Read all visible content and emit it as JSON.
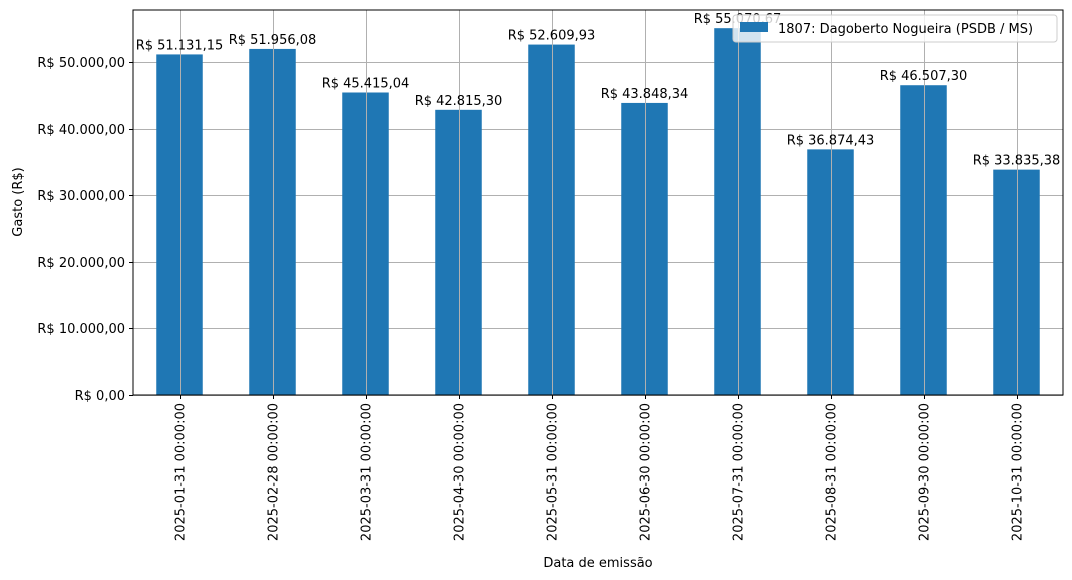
{
  "chart_data": {
    "type": "bar",
    "title": "",
    "xlabel": "Data de emissão",
    "ylabel": "Gasto (R$)",
    "ylim": [
      0,
      57800
    ],
    "grid": true,
    "legend_position": "upper right",
    "categories": [
      "2025-01-31 00:00:00",
      "2025-02-28 00:00:00",
      "2025-03-31 00:00:00",
      "2025-04-30 00:00:00",
      "2025-05-31 00:00:00",
      "2025-06-30 00:00:00",
      "2025-07-31 00:00:00",
      "2025-08-31 00:00:00",
      "2025-09-30 00:00:00",
      "2025-10-31 00:00:00"
    ],
    "series": [
      {
        "name": "1807: Dagoberto Nogueira (PSDB / MS)",
        "color": "#1f77b4",
        "values": [
          51131.15,
          51956.08,
          45415.04,
          42815.3,
          52609.93,
          43848.34,
          55070.67,
          36874.43,
          46507.3,
          33835.38
        ],
        "labels": [
          "R$ 51.131,15",
          "R$ 51.956,08",
          "R$ 45.415,04",
          "R$ 42.815,30",
          "R$ 52.609,93",
          "R$ 43.848,34",
          "R$ 55.070,67",
          "R$ 36.874,43",
          "R$ 46.507,30",
          "R$ 33.835,38"
        ]
      }
    ],
    "yticks": [
      0,
      10000,
      20000,
      30000,
      40000,
      50000
    ],
    "ytick_labels": [
      "R$ 0,00",
      "R$ 10.000,00",
      "R$ 20.000,00",
      "R$ 30.000,00",
      "R$ 40.000,00",
      "R$ 50.000,00"
    ]
  },
  "colors": {
    "bar": "#1f77b4",
    "grid": "#b0b0b0",
    "axis": "#000000"
  }
}
